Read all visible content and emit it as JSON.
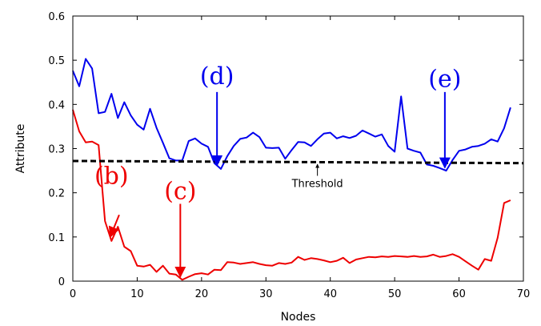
{
  "chart_data": {
    "type": "line",
    "xlabel": "Nodes",
    "ylabel": "Attribute",
    "xlim": [
      0,
      70
    ],
    "ylim": [
      0,
      0.6
    ],
    "xticks": [
      "0",
      "10",
      "20",
      "30",
      "40",
      "50",
      "60",
      "70"
    ],
    "yticks": [
      "0",
      "0.1",
      "0.2",
      "0.3",
      "0.4",
      "0.5",
      "0.6"
    ],
    "grid": false,
    "series": [
      {
        "color": "#0000ee",
        "x": [
          0,
          1,
          2,
          3,
          4,
          5,
          6,
          7,
          8,
          9,
          10,
          11,
          12,
          13,
          14,
          15,
          16,
          17,
          18,
          19,
          20,
          21,
          22,
          23,
          24,
          25,
          26,
          27,
          28,
          29,
          30,
          31,
          32,
          33,
          34,
          35,
          36,
          37,
          38,
          39,
          40,
          41,
          42,
          43,
          44,
          45,
          46,
          47,
          48,
          49,
          50,
          51,
          52,
          53,
          54,
          55,
          56,
          57,
          58,
          59,
          60,
          61,
          62,
          63,
          64,
          65,
          66,
          67,
          68
        ],
        "y": [
          0.476,
          0.441,
          0.503,
          0.481,
          0.38,
          0.383,
          0.424,
          0.369,
          0.405,
          0.375,
          0.354,
          0.343,
          0.39,
          0.347,
          0.313,
          0.278,
          0.273,
          0.273,
          0.317,
          0.323,
          0.311,
          0.304,
          0.267,
          0.254,
          0.283,
          0.306,
          0.322,
          0.325,
          0.336,
          0.326,
          0.302,
          0.301,
          0.302,
          0.277,
          0.297,
          0.315,
          0.314,
          0.306,
          0.321,
          0.334,
          0.336,
          0.323,
          0.328,
          0.324,
          0.329,
          0.341,
          0.334,
          0.327,
          0.332,
          0.306,
          0.293,
          0.418,
          0.3,
          0.295,
          0.291,
          0.264,
          0.261,
          0.256,
          0.25,
          0.274,
          0.295,
          0.298,
          0.304,
          0.306,
          0.311,
          0.321,
          0.316,
          0.346,
          0.393
        ]
      },
      {
        "color": "#ee0000",
        "x": [
          0,
          1,
          2,
          3,
          4,
          5,
          6,
          7,
          8,
          9,
          10,
          11,
          12,
          13,
          14,
          15,
          16,
          17,
          18,
          19,
          20,
          21,
          22,
          23,
          24,
          25,
          26,
          27,
          28,
          29,
          30,
          31,
          32,
          33,
          34,
          35,
          36,
          37,
          38,
          39,
          40,
          41,
          42,
          43,
          44,
          45,
          46,
          47,
          48,
          49,
          50,
          51,
          52,
          53,
          54,
          55,
          56,
          57,
          58,
          59,
          60,
          61,
          62,
          63,
          64,
          65,
          66,
          67,
          68
        ],
        "y": [
          0.388,
          0.339,
          0.314,
          0.316,
          0.308,
          0.136,
          0.091,
          0.123,
          0.078,
          0.068,
          0.035,
          0.033,
          0.037,
          0.021,
          0.035,
          0.017,
          0.015,
          0.003,
          0.01,
          0.016,
          0.018,
          0.015,
          0.026,
          0.025,
          0.043,
          0.042,
          0.039,
          0.041,
          0.043,
          0.039,
          0.036,
          0.035,
          0.041,
          0.039,
          0.042,
          0.055,
          0.048,
          0.052,
          0.05,
          0.047,
          0.043,
          0.046,
          0.053,
          0.041,
          0.049,
          0.052,
          0.055,
          0.054,
          0.056,
          0.055,
          0.057,
          0.056,
          0.055,
          0.057,
          0.055,
          0.056,
          0.06,
          0.055,
          0.057,
          0.061,
          0.055,
          0.045,
          0.035,
          0.026,
          0.05,
          0.046,
          0.098,
          0.177,
          0.183
        ]
      }
    ],
    "threshold": {
      "label": "Threshold",
      "value": 0.27,
      "x": [
        0,
        70
      ],
      "y": [
        0.272,
        0.267
      ],
      "color": "#000000",
      "label_anchor": [
        38,
        0.213
      ],
      "label_arrow_to": [
        38,
        0.27
      ]
    },
    "callouts": [
      {
        "label": "(b)",
        "color": "#ee0000",
        "text_at": [
          6.0,
          0.22
        ],
        "arrow_from": [
          7.2,
          0.15
        ],
        "arrow_to": [
          5.8,
          0.1
        ]
      },
      {
        "label": "(c)",
        "color": "#ee0000",
        "text_at": [
          16.7,
          0.186
        ],
        "arrow_from": [
          16.7,
          0.175
        ],
        "arrow_to": [
          16.7,
          0.01
        ]
      },
      {
        "label": "(d)",
        "color": "#0000ee",
        "text_at": [
          22.4,
          0.446
        ],
        "arrow_from": [
          22.4,
          0.428
        ],
        "arrow_to": [
          22.4,
          0.262
        ]
      },
      {
        "label": "(e)",
        "color": "#0000ee",
        "text_at": [
          57.8,
          0.44
        ],
        "arrow_from": [
          57.8,
          0.428
        ],
        "arrow_to": [
          57.8,
          0.257
        ]
      }
    ]
  }
}
